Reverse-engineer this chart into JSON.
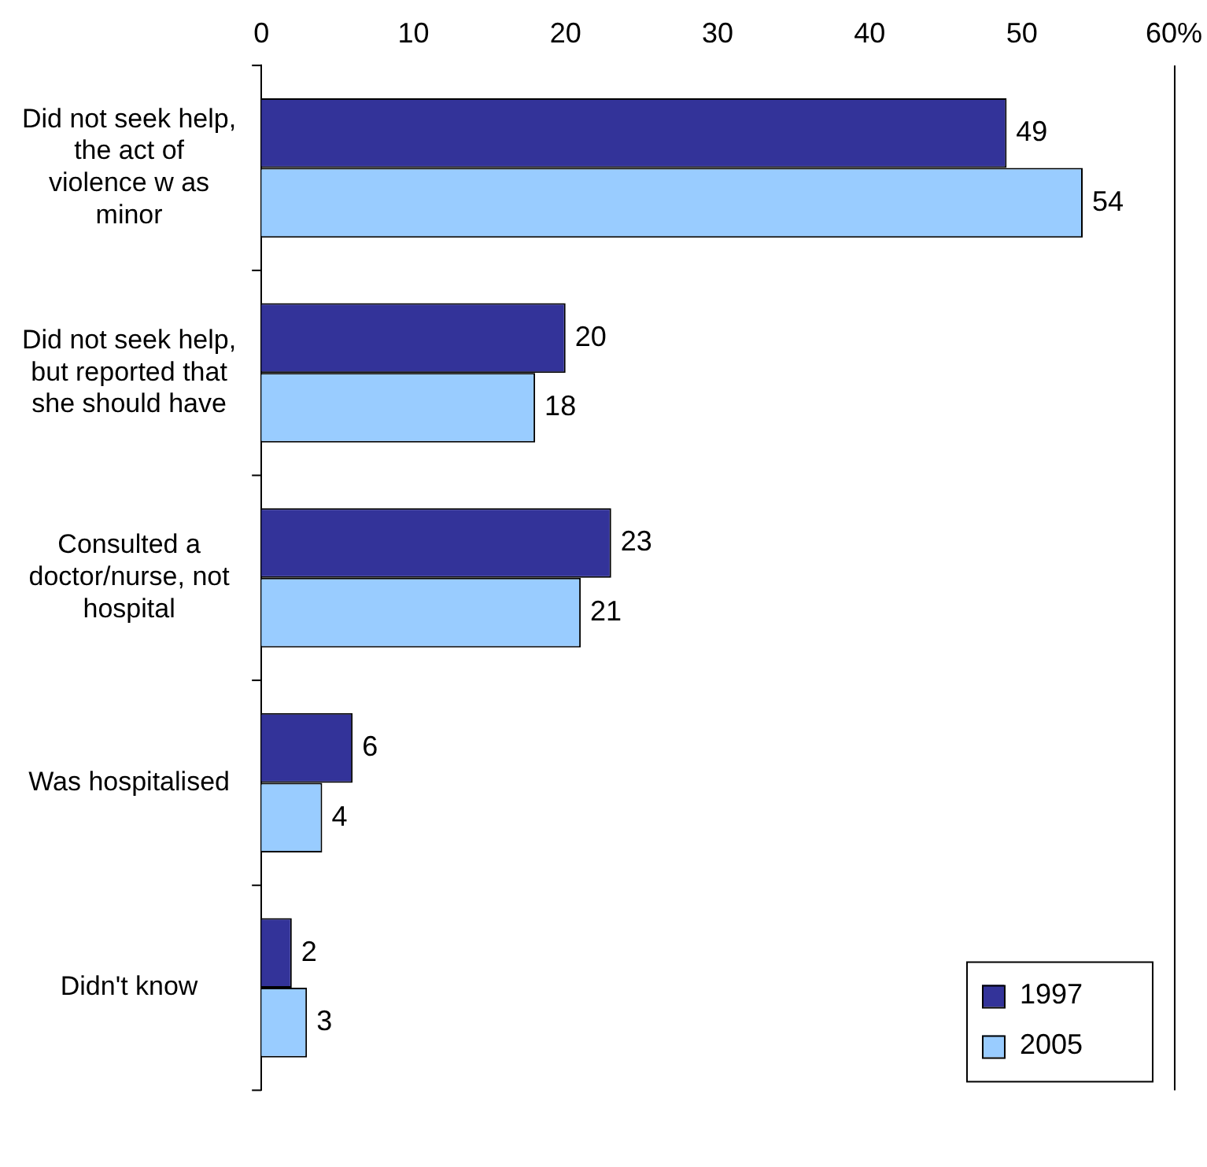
{
  "chart_data": {
    "type": "bar",
    "orientation": "horizontal",
    "categories": [
      "Did not seek help, the act of violence w as minor",
      "Did not seek help, but reported that she should have",
      "Consulted a doctor/nurse, not hospital",
      "Was hospitalised",
      "Didn't know"
    ],
    "series": [
      {
        "name": "1997",
        "color": "#333399",
        "values": [
          49,
          20,
          23,
          6,
          2
        ]
      },
      {
        "name": "2005",
        "color": "#99ccff",
        "values": [
          54,
          18,
          21,
          4,
          3
        ]
      }
    ],
    "xlim": [
      0,
      60
    ],
    "xticks": [
      0,
      10,
      20,
      30,
      40,
      50,
      {
        "value": 60,
        "label": "60%"
      }
    ],
    "grid": false,
    "legend": "bottom right",
    "data_labels": true
  }
}
